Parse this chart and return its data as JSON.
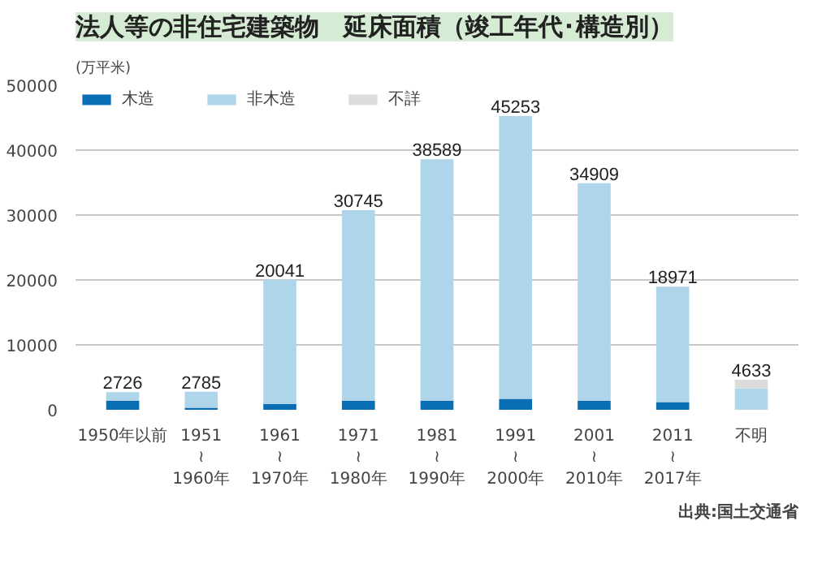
{
  "chart_data": {
    "type": "bar",
    "title": "法人等の非住宅建築物　延床面積（竣工年代･構造別）",
    "ylabel": "(万平米)",
    "categories": [
      "1950年以前",
      "1951\n≀\n1960年",
      "1961\n≀\n1970年",
      "1971\n≀\n1980年",
      "1981\n≀\n1990年",
      "1991\n≀\n2000年",
      "2001\n≀\n2010年",
      "2011\n≀\n2017年",
      "不明"
    ],
    "stacked": true,
    "series": [
      {
        "name": "木造",
        "color": "#0a6eb4",
        "values": [
          1400,
          300,
          900,
          1400,
          1400,
          1700,
          1400,
          1200,
          0
        ]
      },
      {
        "name": "非木造",
        "color": "#aed5ea",
        "values": [
          1326,
          2485,
          19141,
          29345,
          37189,
          43553,
          33509,
          17771,
          3300
        ]
      },
      {
        "name": "不詳",
        "color": "#dcdcdc",
        "values": [
          0,
          0,
          0,
          0,
          0,
          0,
          0,
          0,
          1333
        ]
      }
    ],
    "totals": [
      "2726",
      "2785",
      "20041",
      "30745",
      "38589",
      "45253",
      "34909",
      "18971",
      "4633"
    ],
    "ylim": [
      0,
      50000
    ],
    "yticks": [
      0,
      10000,
      20000,
      30000,
      40000,
      50000
    ],
    "grid": "y",
    "legend": "top",
    "annotations": [
      "出典:国土交通省"
    ]
  }
}
